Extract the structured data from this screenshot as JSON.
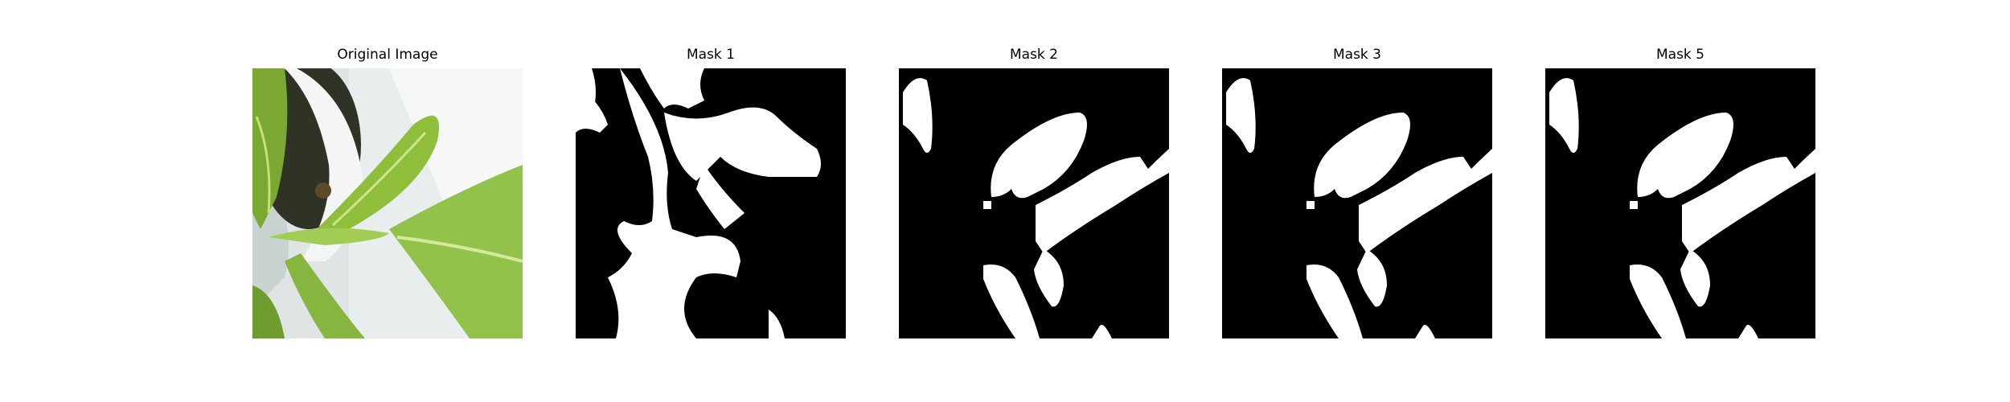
{
  "panels": [
    {
      "title": "Original Image",
      "kind": "photo"
    },
    {
      "title": "Mask 1",
      "kind": "mask"
    },
    {
      "title": "Mask 2",
      "kind": "mask"
    },
    {
      "title": "Mask 3",
      "kind": "mask"
    },
    {
      "title": "Mask 5",
      "kind": "mask"
    }
  ],
  "colors": {
    "background": "#ffffff",
    "mask_foreground": "#ffffff",
    "mask_background": "#000000",
    "leaf_green": "#8fbf45",
    "pot_white": "#e6ecea"
  }
}
